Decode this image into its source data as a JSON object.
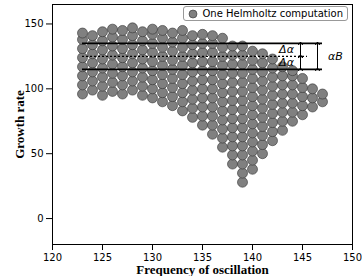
{
  "chart_data": {
    "type": "scatter",
    "x_label": "Frequency of oscillation",
    "y_label": "Growth rate",
    "xlim": [
      120,
      150
    ],
    "ylim": [
      -20,
      165
    ],
    "xticks": [
      120,
      125,
      130,
      135,
      140,
      145,
      150
    ],
    "yticks": [
      0,
      50,
      100,
      150
    ],
    "grid": false,
    "legend": "top-right",
    "series": [
      {
        "name": "One Helmholtz computation",
        "color": "#808080",
        "marker": "circle",
        "x": [
          123,
          123,
          123,
          123,
          123,
          123,
          123,
          123,
          124,
          124,
          124,
          124,
          124,
          124,
          124,
          125,
          125,
          125,
          125,
          125,
          125,
          125,
          125,
          126,
          126,
          126,
          126,
          126,
          126,
          126,
          126,
          127,
          127,
          127,
          127,
          127,
          127,
          127,
          127,
          128,
          128,
          128,
          128,
          128,
          128,
          128,
          128,
          129,
          129,
          129,
          129,
          129,
          129,
          129,
          129,
          130,
          130,
          130,
          130,
          130,
          130,
          130,
          130,
          130,
          131,
          131,
          131,
          131,
          131,
          131,
          131,
          131,
          131,
          132,
          132,
          132,
          132,
          132,
          132,
          132,
          132,
          132,
          133,
          133,
          133,
          133,
          133,
          133,
          133,
          133,
          133,
          133,
          134,
          134,
          134,
          134,
          134,
          134,
          134,
          134,
          134,
          134,
          135,
          135,
          135,
          135,
          135,
          135,
          135,
          135,
          135,
          135,
          135,
          136,
          136,
          136,
          136,
          136,
          136,
          136,
          136,
          136,
          136,
          136,
          136,
          137,
          137,
          137,
          137,
          137,
          137,
          137,
          137,
          137,
          137,
          137,
          137,
          137,
          138,
          138,
          138,
          138,
          138,
          138,
          138,
          138,
          138,
          138,
          138,
          138,
          138,
          138,
          139,
          139,
          139,
          139,
          139,
          139,
          139,
          139,
          139,
          139,
          139,
          139,
          139,
          139,
          139,
          139,
          140,
          140,
          140,
          140,
          140,
          140,
          140,
          140,
          140,
          140,
          140,
          140,
          140,
          140,
          141,
          141,
          141,
          141,
          141,
          141,
          141,
          141,
          141,
          141,
          141,
          141,
          142,
          142,
          142,
          142,
          142,
          142,
          142,
          142,
          142,
          142,
          143,
          143,
          143,
          143,
          143,
          143,
          143,
          143,
          144,
          144,
          144,
          144,
          144,
          144,
          144,
          145,
          145,
          145,
          145,
          145,
          146,
          146,
          146,
          147,
          147
        ],
        "values": [
          96,
          103,
          110,
          117,
          124,
          131,
          138,
          143,
          99,
          106,
          113,
          120,
          127,
          134,
          141,
          95,
          102,
          109,
          116,
          123,
          130,
          137,
          144,
          98,
          105,
          112,
          119,
          126,
          133,
          140,
          146,
          96,
          103,
          110,
          117,
          124,
          131,
          138,
          145,
          99,
          106,
          113,
          120,
          127,
          134,
          141,
          147,
          95,
          102,
          109,
          116,
          123,
          130,
          137,
          144,
          93,
          100,
          107,
          114,
          121,
          128,
          135,
          142,
          146,
          90,
          97,
          104,
          111,
          118,
          125,
          132,
          139,
          145,
          87,
          94,
          101,
          108,
          115,
          122,
          129,
          136,
          143,
          83,
          90,
          97,
          104,
          111,
          118,
          125,
          132,
          139,
          145,
          78,
          85,
          92,
          99,
          106,
          113,
          120,
          127,
          134,
          141,
          72,
          79,
          86,
          93,
          100,
          107,
          114,
          121,
          128,
          135,
          142,
          65,
          72,
          79,
          86,
          93,
          100,
          107,
          114,
          121,
          128,
          135,
          141,
          55,
          62,
          69,
          76,
          83,
          90,
          97,
          104,
          111,
          118,
          125,
          132,
          139,
          42,
          49,
          56,
          63,
          70,
          77,
          84,
          91,
          98,
          105,
          112,
          119,
          126,
          133,
          28,
          35,
          42,
          49,
          56,
          63,
          70,
          77,
          84,
          91,
          98,
          105,
          112,
          119,
          126,
          133,
          38,
          45,
          52,
          59,
          66,
          73,
          80,
          87,
          94,
          101,
          108,
          115,
          122,
          129,
          50,
          57,
          64,
          71,
          78,
          85,
          92,
          99,
          106,
          113,
          120,
          127,
          60,
          67,
          74,
          81,
          88,
          95,
          102,
          109,
          116,
          123,
          68,
          75,
          82,
          89,
          96,
          103,
          110,
          117,
          75,
          82,
          89,
          96,
          103,
          110,
          114,
          80,
          87,
          94,
          101,
          108,
          86,
          93,
          100,
          90,
          96
        ]
      }
    ],
    "hlines": [
      {
        "y": 135,
        "x1": 123,
        "x2": 147,
        "line_style": "solid"
      },
      {
        "y": 125,
        "x1": 123,
        "x2": 145.5,
        "line_style": "dotted"
      },
      {
        "y": 115,
        "x1": 123,
        "x2": 147,
        "line_style": "solid"
      }
    ],
    "arrows": [
      {
        "x": 144.8,
        "y1": 125,
        "y2": 135
      },
      {
        "x": 144.8,
        "y1": 115,
        "y2": 125
      },
      {
        "x": 146.5,
        "y1": 115,
        "y2": 135
      }
    ],
    "annotations": [
      {
        "text": "Δα",
        "x": 143.4,
        "y": 130
      },
      {
        "text": "Δα",
        "x": 143.4,
        "y": 120
      },
      {
        "text": "αB",
        "x": 148.3,
        "y": 125
      }
    ]
  }
}
